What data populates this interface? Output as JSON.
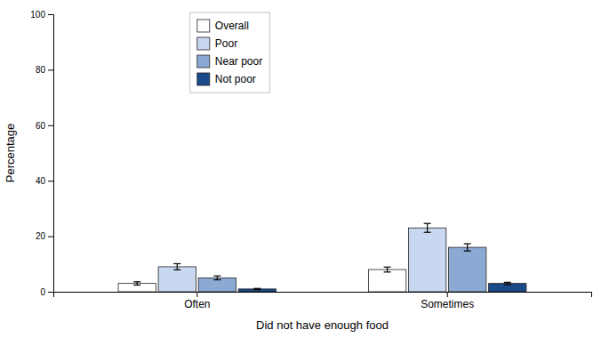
{
  "chart_data": {
    "type": "bar",
    "categories": [
      "Often",
      "Sometimes"
    ],
    "series": [
      {
        "name": "Overall",
        "color": "#ffffff",
        "values": [
          3.0,
          8.0
        ],
        "errors": [
          0.6,
          0.9
        ]
      },
      {
        "name": "Poor",
        "color": "#c8d8f0",
        "values": [
          9.0,
          23.0
        ],
        "errors": [
          1.1,
          1.6
        ]
      },
      {
        "name": "Near poor",
        "color": "#8aaad4",
        "values": [
          5.0,
          16.0
        ],
        "errors": [
          0.7,
          1.3
        ]
      },
      {
        "name": "Not poor",
        "color": "#1a4a8a",
        "values": [
          1.0,
          3.0
        ],
        "errors": [
          0.2,
          0.4
        ]
      }
    ],
    "xlabel": "Did not have enough food",
    "ylabel": "Percentage",
    "ylim": [
      0,
      100
    ],
    "yticks": [
      0,
      20,
      40,
      60,
      80,
      100
    ],
    "grid": false,
    "legend": "upper left"
  }
}
